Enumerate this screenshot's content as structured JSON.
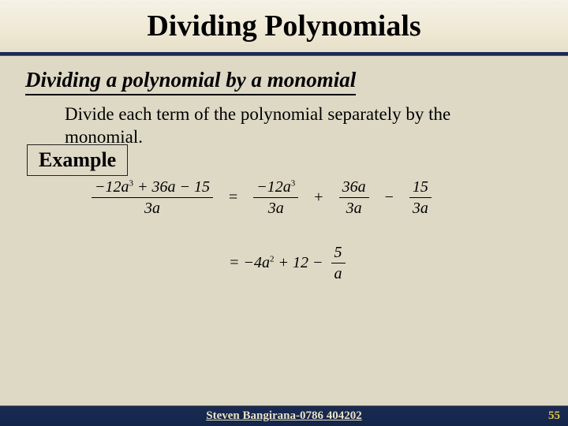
{
  "title": "Dividing Polynomials",
  "subhead": "Dividing a polynomial by a monomial",
  "explain": "Divide each term of the polynomial separately by the monomial.",
  "example_label": "Example",
  "math": {
    "lhs_num_html": "−12<i>a</i><sup>3</sup> + 36<i>a</i> − 15",
    "lhs_den_html": "3<i>a</i>",
    "r1_t1_num_html": "−12<i>a</i><sup>3</sup>",
    "r1_t1_den_html": "3<i>a</i>",
    "r1_t2_num_html": "36<i>a</i>",
    "r1_t2_den_html": "3<i>a</i>",
    "r1_t3_num_html": "15",
    "r1_t3_den_html": "3<i>a</i>",
    "r2_lead_html": "= −4<i>a</i><sup>2</sup> + 12 −",
    "r2_frac_num": "5",
    "r2_frac_den_html": "<i>a</i>"
  },
  "footer": {
    "author": "Steven Bangirana-0786 404202",
    "page": "55"
  },
  "colors": {
    "background": "#ded9c5",
    "title_border": "#1a2b52",
    "footer_bg": "#1a2b52",
    "footer_text": "#e9e2c6",
    "pagenum": "#e0c24a"
  }
}
